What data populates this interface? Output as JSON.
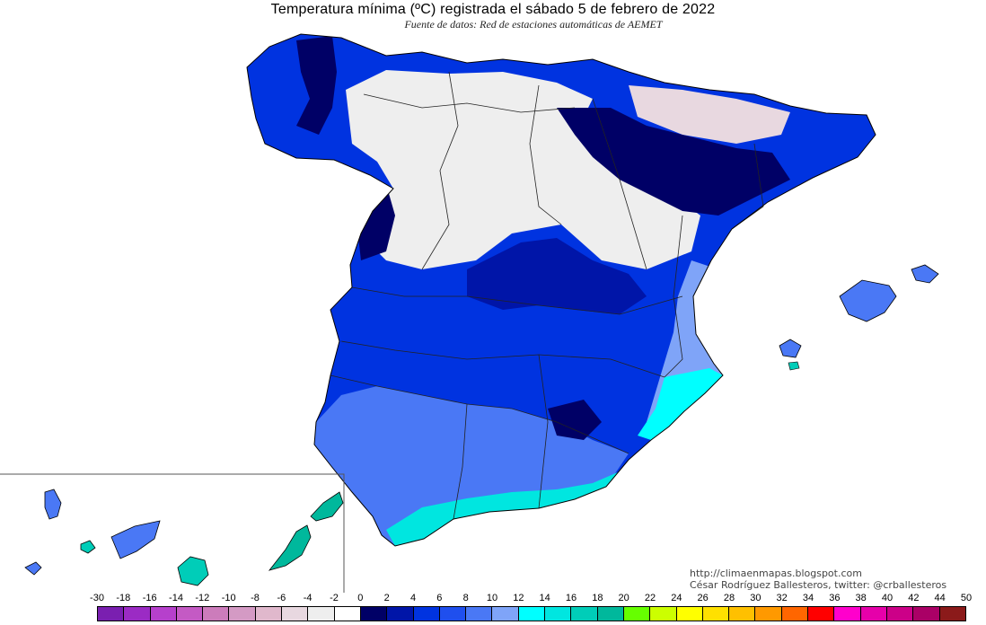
{
  "title": "Temperatura mínima (ºC) registrada el sábado 5 de febrero de 2022",
  "subtitle": "Fuente de datos: Red de estaciones automáticas de AEMET",
  "credits": {
    "blog": "http://climaenmapas.blogspot.com",
    "author": "César Rodríguez Ballesteros, twitter: @crballesteros"
  },
  "legend": {
    "labels": [
      "-30",
      "-18",
      "-16",
      "-14",
      "-12",
      "-10",
      "-8",
      "-6",
      "-4",
      "-2",
      "0",
      "2",
      "4",
      "6",
      "8",
      "10",
      "12",
      "14",
      "16",
      "18",
      "20",
      "22",
      "24",
      "26",
      "28",
      "30",
      "32",
      "34",
      "36",
      "38",
      "40",
      "42",
      "44",
      "50"
    ],
    "colors": [
      "#7a1fb0",
      "#9b2bc4",
      "#b640cc",
      "#c45ac4",
      "#cc7cbb",
      "#d49ac4",
      "#e0b8cc",
      "#e8d8e0",
      "#eeeeee",
      "#ffffff",
      "#000066",
      "#0015a8",
      "#0033e0",
      "#1f4fee",
      "#4a78f5",
      "#7fa4f8",
      "#00ffff",
      "#00e6e0",
      "#00cdb8",
      "#00b89c",
      "#66ff00",
      "#ccff00",
      "#ffff00",
      "#ffe000",
      "#ffc000",
      "#ff9900",
      "#ff6600",
      "#ff0000",
      "#ff00cc",
      "#e600aa",
      "#cc0088",
      "#aa0066",
      "#8b1a1a"
    ]
  },
  "colors": {
    "very_cold_core": "#000066",
    "cold": "#0015a8",
    "mid_blue": "#0033e0",
    "light_blue": "#4a78f5",
    "pale_blue": "#7fa4f8",
    "cyan": "#00ffff",
    "teal": "#00cdb8",
    "near_zero": "#eeeeee",
    "mountain_pink": "#d7b8c8"
  }
}
